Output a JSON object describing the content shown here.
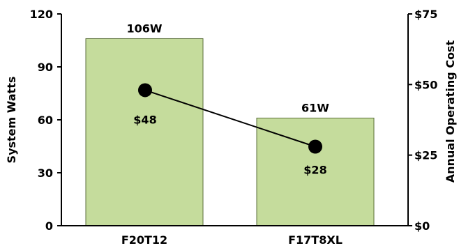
{
  "chart_data": {
    "type": "bar",
    "categories": [
      "F20T12",
      "F17T8XL"
    ],
    "series": [
      {
        "values": [
          106,
          61
        ],
        "axis": "left",
        "chart_type": "bar",
        "value_labels": [
          "106W",
          "61W"
        ],
        "color": "#c5dc9c"
      },
      {
        "values": [
          48,
          28
        ],
        "axis": "right",
        "chart_type": "line",
        "value_labels": [
          "$48",
          "$28"
        ],
        "color": "#000000"
      }
    ],
    "ylabel": "System Watts",
    "y2label": "Annual Operating Cost",
    "ylim": [
      0,
      120
    ],
    "y2lim": [
      0,
      75
    ],
    "yticks": [
      "0",
      "30",
      "60",
      "90",
      "120"
    ],
    "y2ticks": [
      "$0",
      "$25",
      "$50",
      "$75"
    ],
    "grid": false,
    "legend": "none",
    "colors": {
      "bar_fill": "#c5dc9c",
      "bar_stroke": "#5a6e3a",
      "line": "#000000",
      "marker": "#000000"
    }
  }
}
